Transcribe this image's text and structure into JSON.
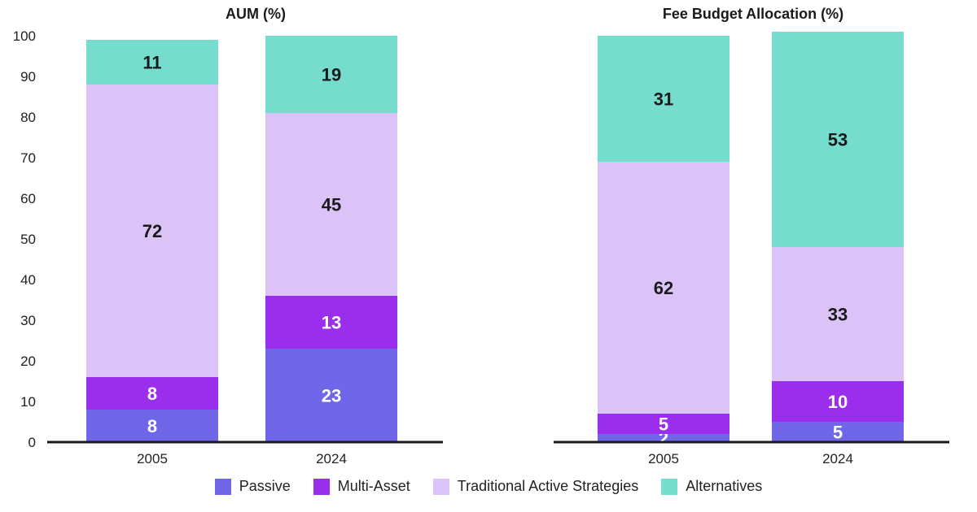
{
  "chart_data": [
    {
      "type": "bar",
      "stacked": true,
      "title": "AUM (%)",
      "categories": [
        "2005",
        "2024"
      ],
      "ylim": [
        0,
        100
      ],
      "yticks": [
        0,
        10,
        20,
        30,
        40,
        50,
        60,
        70,
        80,
        90,
        100
      ],
      "series": [
        {
          "name": "Passive",
          "values": [
            8,
            23
          ]
        },
        {
          "name": "Multi-Asset",
          "values": [
            8,
            13
          ]
        },
        {
          "name": "Traditional Active Strategies",
          "values": [
            72,
            45
          ]
        },
        {
          "name": "Alternatives",
          "values": [
            11,
            19
          ]
        }
      ]
    },
    {
      "type": "bar",
      "stacked": true,
      "title": "Fee Budget Allocation (%)",
      "categories": [
        "2005",
        "2024"
      ],
      "ylim": [
        0,
        100
      ],
      "series": [
        {
          "name": "Passive",
          "values": [
            2,
            5
          ]
        },
        {
          "name": "Multi-Asset",
          "values": [
            5,
            10
          ]
        },
        {
          "name": "Traditional Active Strategies",
          "values": [
            62,
            33
          ]
        },
        {
          "name": "Alternatives",
          "values": [
            31,
            53
          ]
        }
      ]
    }
  ],
  "legend": [
    {
      "label": "Passive",
      "color": "#6f66e8"
    },
    {
      "label": "Multi-Asset",
      "color": "#9b2ded"
    },
    {
      "label": "Traditional Active Strategies",
      "color": "#dcc3f7"
    },
    {
      "label": "Alternatives",
      "color": "#76dccd"
    }
  ],
  "label_colors": [
    "#ffffff",
    "#ffffff",
    "#1a1a1a",
    "#1a1a1a"
  ]
}
